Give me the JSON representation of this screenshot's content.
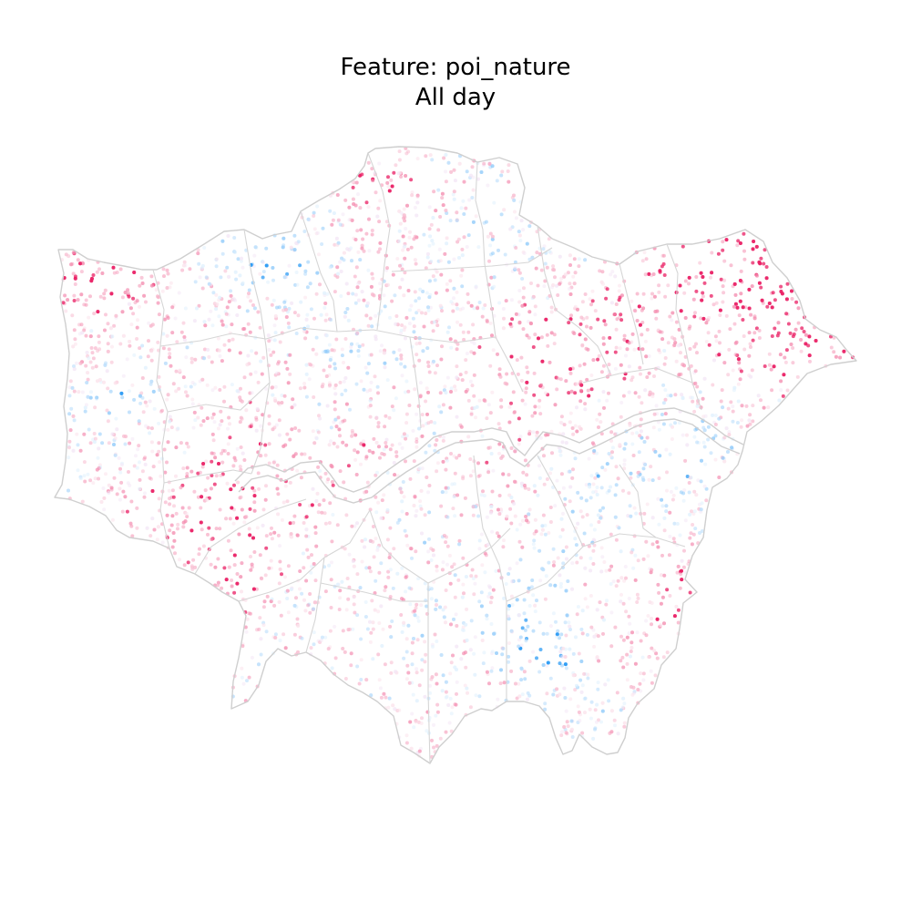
{
  "figure": {
    "title_line1": "Feature: poi_nature",
    "title_line2": "All day"
  },
  "map": {
    "type": "point-density map",
    "region_outline_color": "#cfcfcf",
    "thames_color": "#cfcfcf",
    "palette": {
      "high": "#e91e63",
      "mid_high": "#f48fb1",
      "neutral": "#f3e5f5",
      "mid_low": "#90caf9",
      "low": "#2196f3"
    }
  }
}
